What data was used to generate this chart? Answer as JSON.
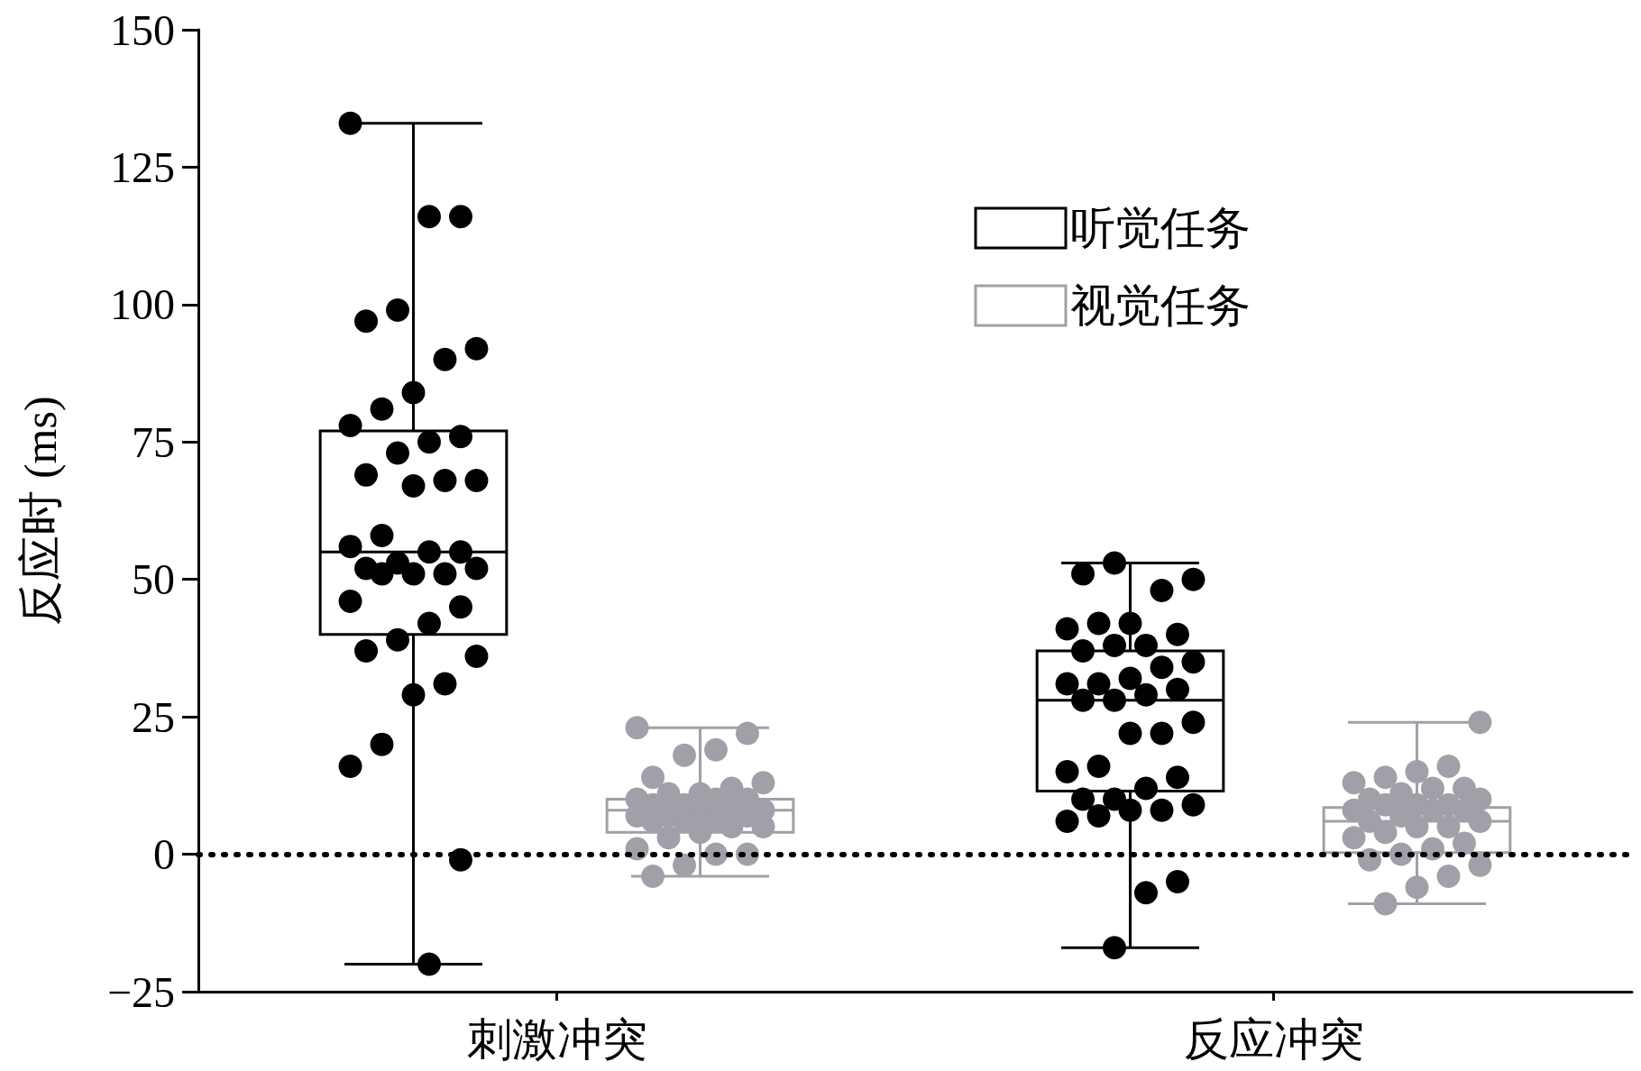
{
  "chart_data": {
    "type": "box",
    "ylabel": "反应时 (ms)",
    "categories": [
      "刺激冲突",
      "反应冲突"
    ],
    "ylim": [
      -25,
      150
    ],
    "yticks": [
      {
        "value": -25,
        "label": "−25"
      },
      0,
      25,
      50,
      75,
      100,
      125,
      150
    ],
    "grid": false,
    "legend": "top right",
    "series": [
      {
        "name": "听觉任务",
        "color": "#000000",
        "boxes": [
          {
            "low": -20,
            "q1": 40,
            "median": 55,
            "q3": 77,
            "high": 133
          },
          {
            "low": -17,
            "q1": 11.5,
            "median": 28,
            "q3": 37,
            "high": 53
          }
        ]
      },
      {
        "name": "视觉任务",
        "color": "#a0a0a8",
        "boxes": [
          {
            "low": -4,
            "q1": 4,
            "median": 8,
            "q3": 10,
            "high": 23
          },
          {
            "low": -9,
            "q1": 0.3,
            "median": 6,
            "q3": 8.5,
            "high": 24
          }
        ]
      },
      {
        "type": "scatter",
        "color": "#000000",
        "x": [
          "刺激冲突",
          "刺激冲突",
          "刺激冲突",
          "刺激冲突",
          "刺激冲突",
          "刺激冲突",
          "刺激冲突",
          "刺激冲突",
          "刺激冲突",
          "刺激冲突",
          "刺激冲突",
          "刺激冲突",
          "刺激冲突",
          "刺激冲突",
          "刺激冲突",
          "刺激冲突",
          "刺激冲突",
          "刺激冲突",
          "刺激冲突",
          "刺激冲突",
          "刺激冲突",
          "刺激冲突",
          "刺激冲突",
          "刺激冲突",
          "刺激冲突",
          "刺激冲突",
          "刺激冲突",
          "刺激冲突",
          "刺激冲突",
          "刺激冲突",
          "刺激冲突",
          "刺激冲突",
          "刺激冲突",
          "刺激冲突",
          "刺激冲突",
          "刺激冲突",
          "刺激冲突",
          "刺激冲突",
          "刺激冲突",
          "反应冲突",
          "反应冲突",
          "反应冲突",
          "反应冲突",
          "反应冲突",
          "反应冲突",
          "反应冲突",
          "反应冲突",
          "反应冲突",
          "反应冲突",
          "反应冲突",
          "反应冲突",
          "反应冲突",
          "反应冲突",
          "反应冲突",
          "反应冲突",
          "反应冲突",
          "反应冲突",
          "反应冲突",
          "反应冲突",
          "反应冲突",
          "反应冲突",
          "反应冲突",
          "反应冲突",
          "反应冲突",
          "反应冲突",
          "反应冲突",
          "反应冲突",
          "反应冲突",
          "反应冲突",
          "反应冲突",
          "反应冲突",
          "反应冲突",
          "反应冲突",
          "反应冲突",
          "反应冲突",
          "反应冲突"
        ],
        "values": [
          133,
          116,
          116,
          99,
          97,
          92,
          90,
          84,
          81,
          78,
          76,
          75,
          73,
          69,
          68,
          68,
          67,
          58,
          56,
          55,
          55,
          53,
          52,
          52,
          51,
          51,
          51,
          46,
          45,
          42,
          39,
          37,
          36,
          31,
          29,
          20,
          16,
          -1,
          -20,
          53,
          51,
          50,
          48,
          42,
          42,
          41,
          40,
          38,
          38,
          37,
          35,
          34,
          32,
          31,
          31,
          30,
          29,
          28,
          28,
          24,
          22,
          22,
          16,
          15,
          14,
          12,
          10,
          10,
          9,
          8,
          8,
          7,
          6,
          -5,
          -7,
          -17
        ]
      },
      {
        "type": "scatter",
        "color": "#a0a0a8",
        "x": [
          "刺激冲突",
          "刺激冲突",
          "刺激冲突",
          "刺激冲突",
          "刺激冲突",
          "刺激冲突",
          "刺激冲突",
          "刺激冲突",
          "刺激冲突",
          "刺激冲突",
          "刺激冲突",
          "刺激冲突",
          "刺激冲突",
          "刺激冲突",
          "刺激冲突",
          "刺激冲突",
          "刺激冲突",
          "刺激冲突",
          "刺激冲突",
          "刺激冲突",
          "刺激冲突",
          "刺激冲突",
          "刺激冲突",
          "刺激冲突",
          "刺激冲突",
          "刺激冲突",
          "刺激冲突",
          "刺激冲突",
          "刺激冲突",
          "刺激冲突",
          "刺激冲突",
          "刺激冲突",
          "反应冲突",
          "反应冲突",
          "反应冲突",
          "反应冲突",
          "反应冲突",
          "反应冲突",
          "反应冲突",
          "反应冲突",
          "反应冲突",
          "反应冲突",
          "反应冲突",
          "反应冲突",
          "反应冲突",
          "反应冲突",
          "反应冲突",
          "反应冲突",
          "反应冲突",
          "反应冲突",
          "反应冲突",
          "反应冲突",
          "反应冲突",
          "反应冲突",
          "反应冲突",
          "反应冲突",
          "反应冲突",
          "反应冲突",
          "反应冲突",
          "反应冲突",
          "反应冲突",
          "反应冲突",
          "反应冲突"
        ],
        "values": [
          23,
          22,
          19,
          18,
          14,
          13,
          12,
          11,
          11,
          10,
          10,
          10,
          9,
          9,
          8,
          8,
          8,
          7,
          7,
          7,
          6,
          6,
          6,
          5,
          5,
          4,
          3,
          1,
          0,
          0,
          -2,
          -4,
          24,
          16,
          15,
          14,
          13,
          12,
          12,
          11,
          10,
          10,
          9,
          9,
          9,
          8,
          8,
          8,
          7,
          6,
          6,
          5,
          5,
          4,
          3,
          2,
          1,
          0,
          -1,
          -2,
          -4,
          -6,
          -9
        ]
      }
    ],
    "ref_lines": [
      {
        "axis": "y",
        "value": 0,
        "color": "#000000",
        "line_style": "dotted"
      }
    ]
  }
}
